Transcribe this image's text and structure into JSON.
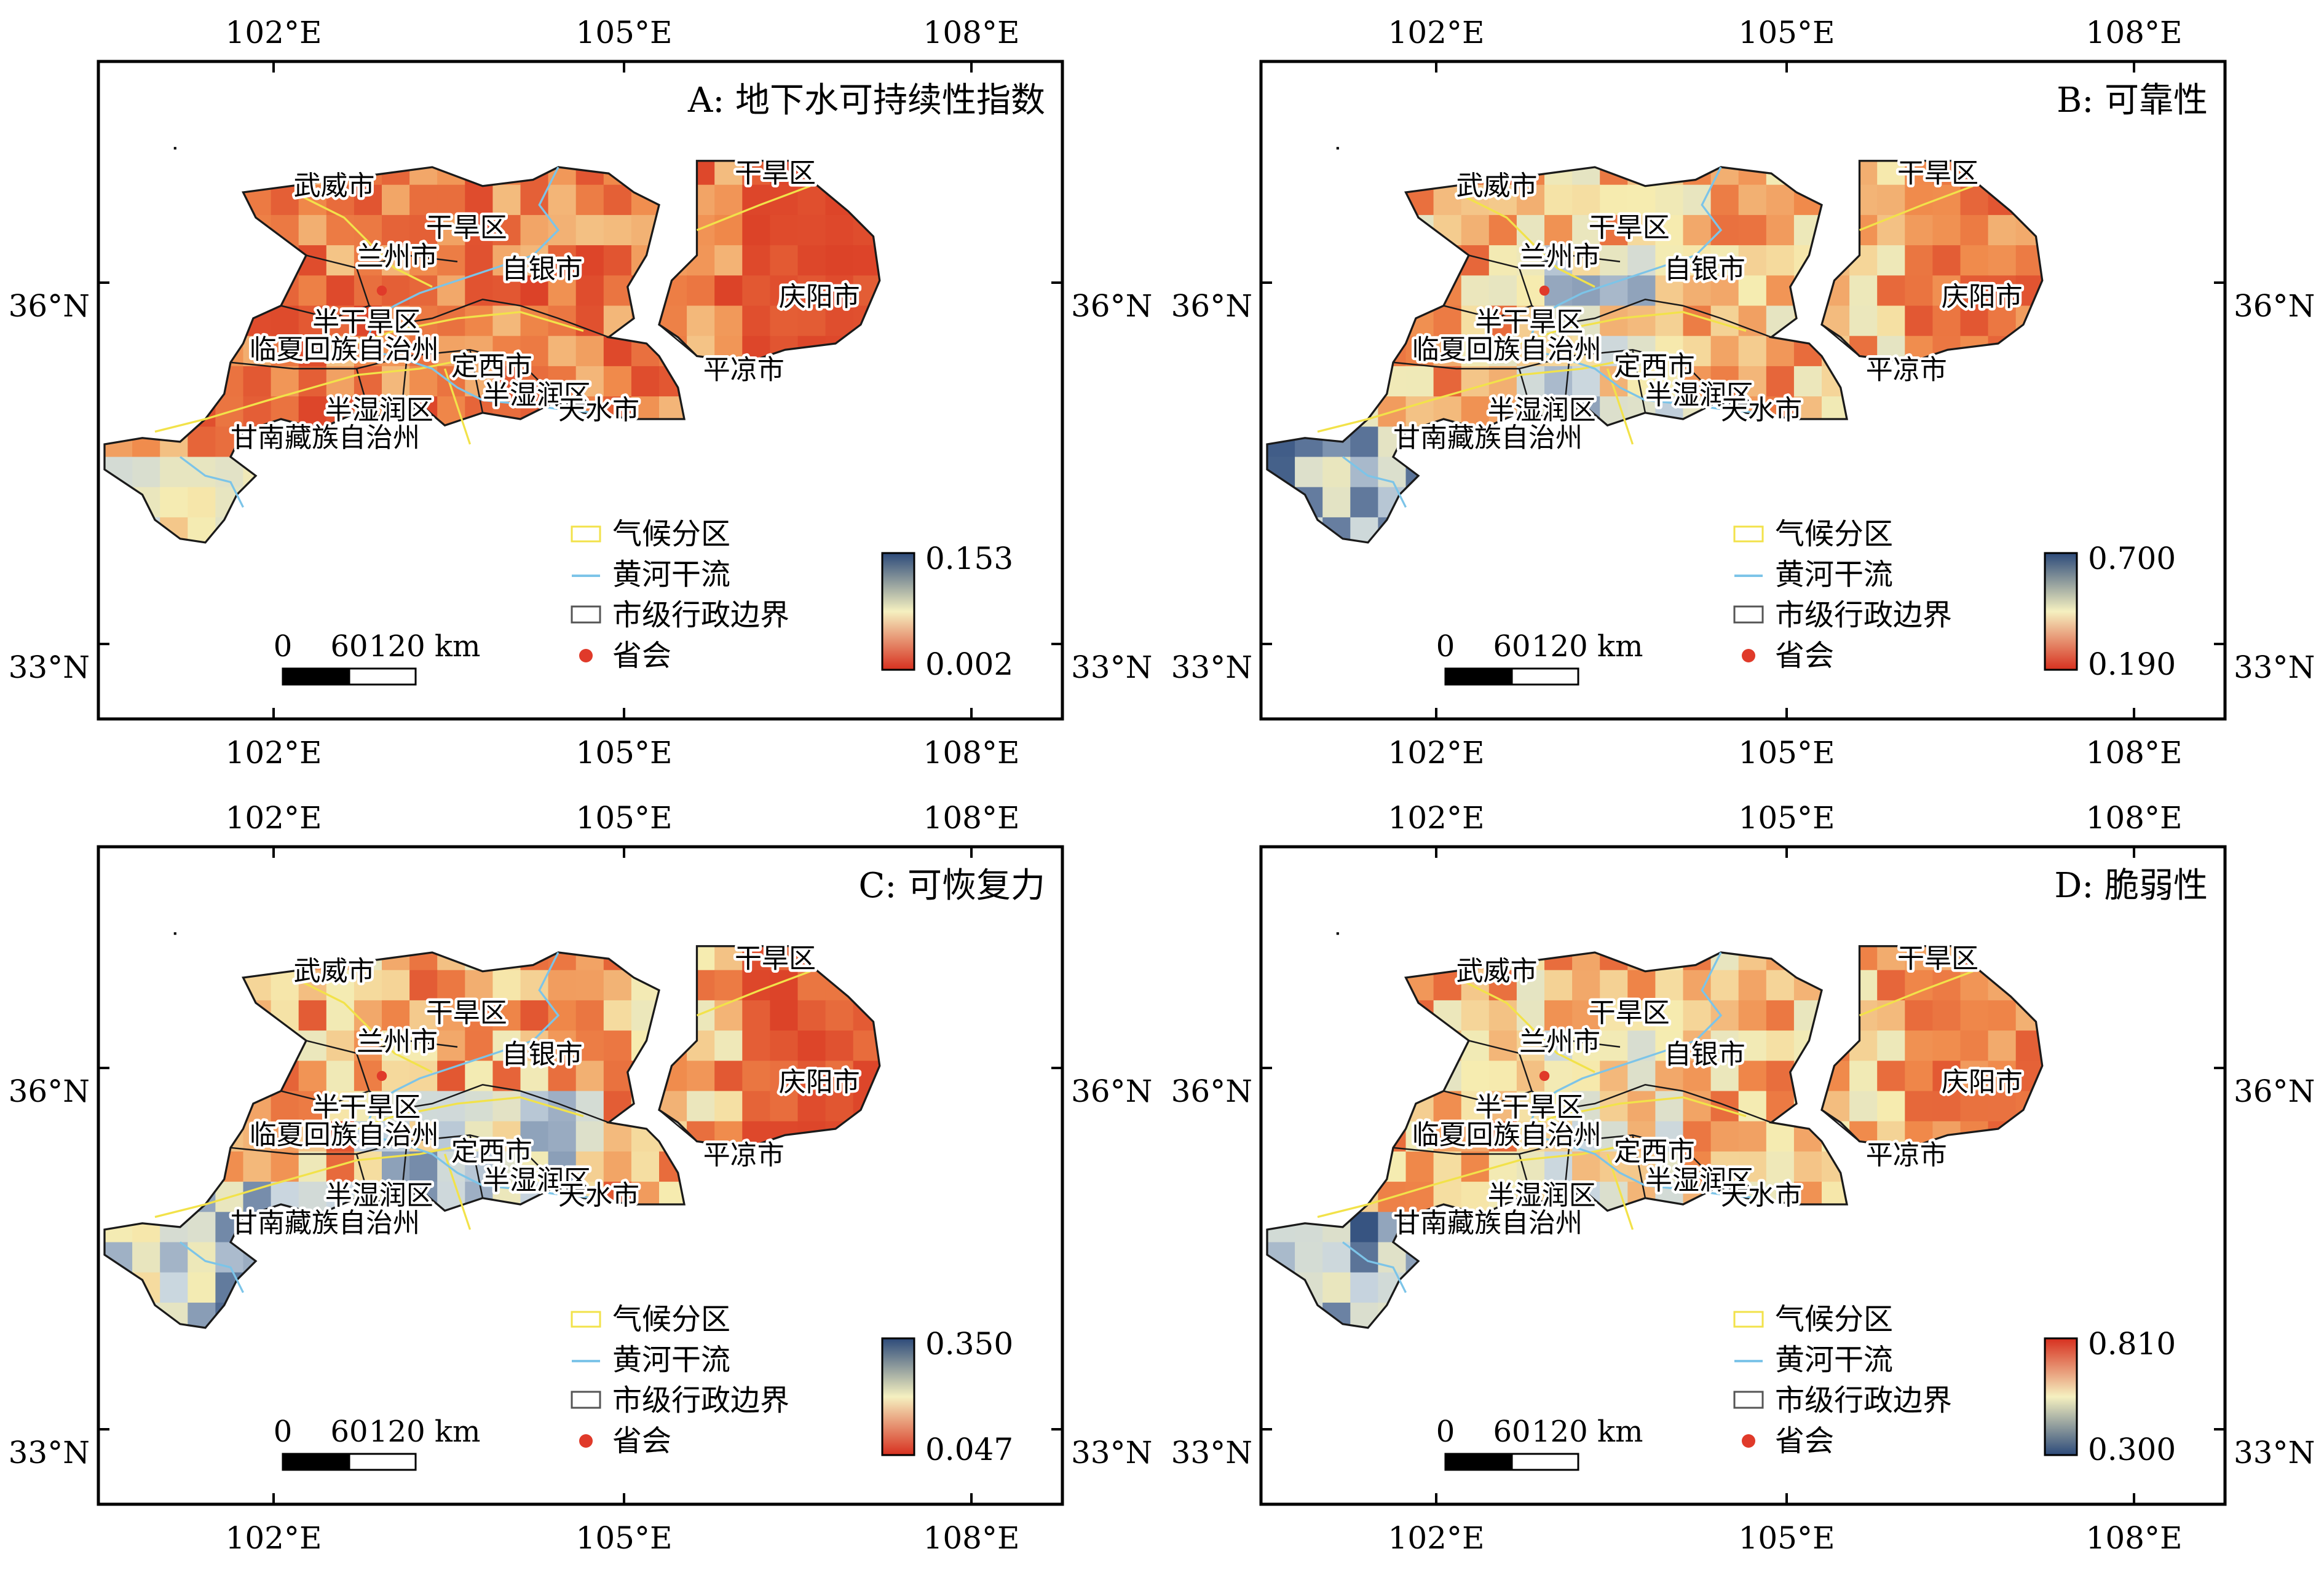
{
  "figure": {
    "panels": [
      {
        "id": "A",
        "title": "A: 地下水可持续性指数",
        "colorbar": {
          "top_label": "0.153",
          "bottom_label": "0.002",
          "top_color": "#2c4a7a",
          "mid_color": "#f5f0c0",
          "bottom_color": "#d7301f"
        },
        "scheme": "sustainability"
      },
      {
        "id": "B",
        "title": "B: 可靠性",
        "colorbar": {
          "top_label": "0.700",
          "bottom_label": "0.190",
          "top_color": "#2c4a7a",
          "mid_color": "#f5f0c0",
          "bottom_color": "#d7301f"
        },
        "scheme": "reliability"
      },
      {
        "id": "C",
        "title": "C: 可恢复力",
        "colorbar": {
          "top_label": "0.350",
          "bottom_label": "0.047",
          "top_color": "#2c4a7a",
          "mid_color": "#f5f0c0",
          "bottom_color": "#d7301f"
        },
        "scheme": "resilience"
      },
      {
        "id": "D",
        "title": "D: 脆弱性",
        "colorbar": {
          "top_label": "0.810",
          "bottom_label": "0.300",
          "top_color": "#d7301f",
          "mid_color": "#f5f0c0",
          "bottom_color": "#2c4a7a"
        },
        "scheme": "vulnerability"
      }
    ],
    "axes": {
      "lon_ticks": [
        "102°E",
        "105°E",
        "108°E"
      ],
      "lat_ticks": [
        "36°N",
        "33°N"
      ]
    },
    "map_labels": {
      "wuwei": "武威市",
      "ganhan_n": "干旱区",
      "ganhan_e": "干旱区",
      "lanzhou": "兰州市",
      "baiyin": "自银市",
      "qingyang": "庆阳市",
      "banganhan": "半干旱区",
      "linxia": "临夏回族自治州",
      "dingxi": "定西市",
      "pingliang": "平凉市",
      "banshirun_w": "半湿润区",
      "banshirun_e": "半湿润区",
      "tianshui": "天水市",
      "gannan": "甘南藏族自治州"
    },
    "legend": {
      "climate_zone": "气候分区",
      "yellow_river": "黄河干流",
      "city_boundary": "市级行政边界",
      "capital": "省会"
    },
    "scalebar": {
      "labels": [
        "0",
        "60",
        "120 km"
      ]
    },
    "colors": {
      "climate_zone_line": "#f2e24a",
      "river_line": "#7cc4e8",
      "boundary_line": "#1a1a1a",
      "capital_dot": "#e03a2a"
    }
  }
}
